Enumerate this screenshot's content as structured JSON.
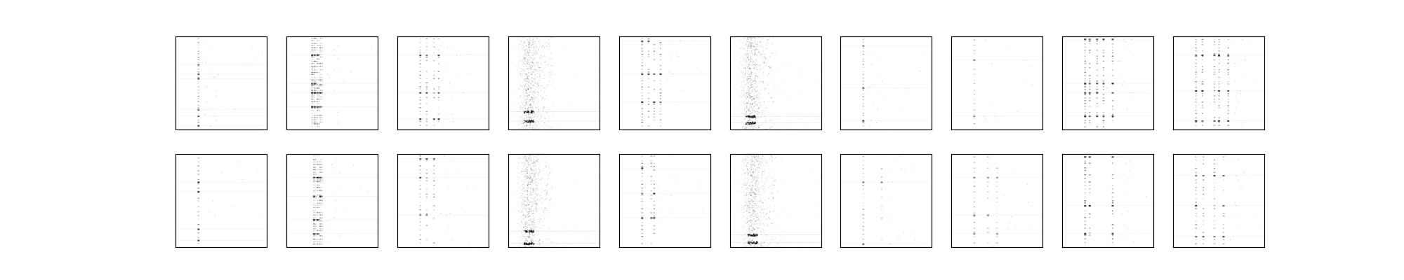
{
  "figure": {
    "background": "#ffffff",
    "grid_rows": 2,
    "grid_cols": 10,
    "axes_ticks": "hidden",
    "panel_frame_color": "#000000"
  },
  "chart_data": {
    "type": "heatmap",
    "title": "",
    "xlabel": "",
    "ylabel": "",
    "colormap": "gray_r",
    "panels": [
      {
        "row": 0,
        "col": 0,
        "pattern": "single_column",
        "column_x": [
          0.25
        ],
        "intensity": 0.7,
        "rows_with_points": 30,
        "dark_rows": [
          0.3,
          0.4,
          0.45,
          0.78,
          0.85,
          0.95
        ]
      },
      {
        "row": 0,
        "col": 1,
        "pattern": "dense_cluster",
        "column_x": [
          0.28,
          0.31,
          0.34,
          0.37
        ],
        "intensity": 0.85,
        "rows_with_points": 40,
        "dark_rows": [
          0.2,
          0.5,
          0.6,
          0.75
        ]
      },
      {
        "row": 0,
        "col": 2,
        "pattern": "multi_column",
        "column_x": [
          0.25,
          0.32,
          0.4,
          0.45
        ],
        "intensity": 0.7,
        "rows_with_points": 25,
        "dark_rows": [
          0.2,
          0.6,
          0.88
        ]
      },
      {
        "row": 0,
        "col": 3,
        "pattern": "noisy_band",
        "column_x": [
          0.22
        ],
        "intensity": 0.9,
        "rows_with_points": 0,
        "dark_rows": [
          0.8,
          0.9
        ]
      },
      {
        "row": 0,
        "col": 4,
        "pattern": "multi_column",
        "column_x": [
          0.25,
          0.32,
          0.38,
          0.45
        ],
        "intensity": 0.8,
        "rows_with_points": 30,
        "dark_rows": [
          0.05,
          0.4,
          0.7
        ]
      },
      {
        "row": 0,
        "col": 5,
        "pattern": "noisy_band",
        "column_x": [
          0.22
        ],
        "intensity": 0.9,
        "rows_with_points": 0,
        "dark_rows": [
          0.85,
          0.92
        ]
      },
      {
        "row": 0,
        "col": 6,
        "pattern": "single_column",
        "column_x": [
          0.25
        ],
        "intensity": 0.6,
        "rows_with_points": 28,
        "dark_rows": [
          0.1,
          0.55,
          0.9
        ]
      },
      {
        "row": 0,
        "col": 7,
        "pattern": "single_column",
        "column_x": [
          0.25
        ],
        "intensity": 0.5,
        "rows_with_points": 18,
        "dark_rows": [
          0.25,
          0.85
        ]
      },
      {
        "row": 0,
        "col": 8,
        "pattern": "multi_column",
        "column_x": [
          0.25,
          0.3,
          0.38,
          0.45,
          0.55
        ],
        "intensity": 0.85,
        "rows_with_points": 32,
        "dark_rows": [
          0.03,
          0.5,
          0.6,
          0.85
        ]
      },
      {
        "row": 0,
        "col": 9,
        "pattern": "multi_column",
        "column_x": [
          0.25,
          0.32,
          0.45,
          0.5,
          0.6
        ],
        "intensity": 0.75,
        "rows_with_points": 30,
        "dark_rows": [
          0.2,
          0.58,
          0.9
        ]
      },
      {
        "row": 1,
        "col": 0,
        "pattern": "single_column",
        "column_x": [
          0.25
        ],
        "intensity": 0.8,
        "rows_with_points": 20,
        "dark_rows": [
          0.3,
          0.4,
          0.8,
          0.92
        ]
      },
      {
        "row": 1,
        "col": 1,
        "pattern": "dense_cluster",
        "column_x": [
          0.3,
          0.34,
          0.37
        ],
        "intensity": 0.85,
        "rows_with_points": 35,
        "dark_rows": [
          0.25,
          0.45,
          0.7,
          0.85
        ]
      },
      {
        "row": 1,
        "col": 2,
        "pattern": "multi_column",
        "column_x": [
          0.25,
          0.32,
          0.4
        ],
        "intensity": 0.7,
        "rows_with_points": 22,
        "dark_rows": [
          0.05,
          0.25,
          0.65
        ]
      },
      {
        "row": 1,
        "col": 3,
        "pattern": "noisy_band",
        "column_x": [
          0.22
        ],
        "intensity": 0.9,
        "rows_with_points": 0,
        "dark_rows": [
          0.82,
          0.95
        ]
      },
      {
        "row": 1,
        "col": 4,
        "pattern": "multi_column",
        "column_x": [
          0.25,
          0.35,
          0.38
        ],
        "intensity": 0.8,
        "rows_with_points": 26,
        "dark_rows": [
          0.15,
          0.42,
          0.68
        ]
      },
      {
        "row": 1,
        "col": 5,
        "pattern": "noisy_band",
        "column_x": [
          0.24
        ],
        "intensity": 0.9,
        "rows_with_points": 0,
        "dark_rows": [
          0.86,
          0.94
        ]
      },
      {
        "row": 1,
        "col": 6,
        "pattern": "single_column",
        "column_x": [
          0.25,
          0.45
        ],
        "intensity": 0.55,
        "rows_with_points": 22,
        "dark_rows": [
          0.3,
          0.96
        ]
      },
      {
        "row": 1,
        "col": 7,
        "pattern": "multi_column",
        "column_x": [
          0.25,
          0.4,
          0.5
        ],
        "intensity": 0.55,
        "rows_with_points": 18,
        "dark_rows": [
          0.25,
          0.65,
          0.85
        ]
      },
      {
        "row": 1,
        "col": 8,
        "pattern": "multi_column",
        "column_x": [
          0.25,
          0.3,
          0.55
        ],
        "intensity": 0.85,
        "rows_with_points": 25,
        "dark_rows": [
          0.03,
          0.55,
          0.85
        ]
      },
      {
        "row": 1,
        "col": 9,
        "pattern": "multi_column",
        "column_x": [
          0.25,
          0.33,
          0.45,
          0.55
        ],
        "intensity": 0.7,
        "rows_with_points": 24,
        "dark_rows": [
          0.23,
          0.55,
          0.88
        ]
      }
    ]
  }
}
